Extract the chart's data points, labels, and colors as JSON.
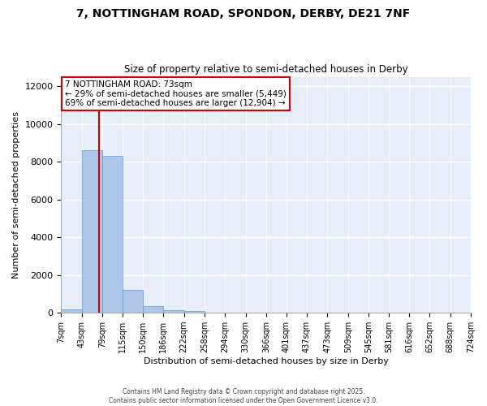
{
  "title_line1": "7, NOTTINGHAM ROAD, SPONDON, DERBY, DE21 7NF",
  "title_line2": "Size of property relative to semi-detached houses in Derby",
  "xlabel": "Distribution of semi-detached houses by size in Derby",
  "ylabel": "Number of semi-detached properties",
  "property_size": 73,
  "property_label": "7 NOTTINGHAM ROAD: 73sqm",
  "pct_smaller": 29,
  "pct_larger": 69,
  "n_smaller": 5449,
  "n_larger": 12904,
  "bin_edges": [
    7,
    43,
    79,
    115,
    150,
    186,
    222,
    258,
    294,
    330,
    366,
    401,
    437,
    473,
    509,
    545,
    581,
    616,
    652,
    688,
    724
  ],
  "bar_heights": [
    200,
    8600,
    8300,
    1200,
    350,
    150,
    80,
    10,
    5,
    2,
    1,
    0,
    0,
    0,
    0,
    0,
    0,
    0,
    0,
    0
  ],
  "bar_color": "#aec6e8",
  "bar_edge_color": "#5a9fd4",
  "red_line_color": "#cc0000",
  "background_color": "#e8eef7",
  "grid_color": "#ffffff",
  "footer_text": "Contains HM Land Registry data © Crown copyright and database right 2025.\nContains public sector information licensed under the Open Government Licence v3.0.",
  "ylim": [
    0,
    12500
  ],
  "yticks": [
    0,
    2000,
    4000,
    6000,
    8000,
    10000,
    12000
  ]
}
